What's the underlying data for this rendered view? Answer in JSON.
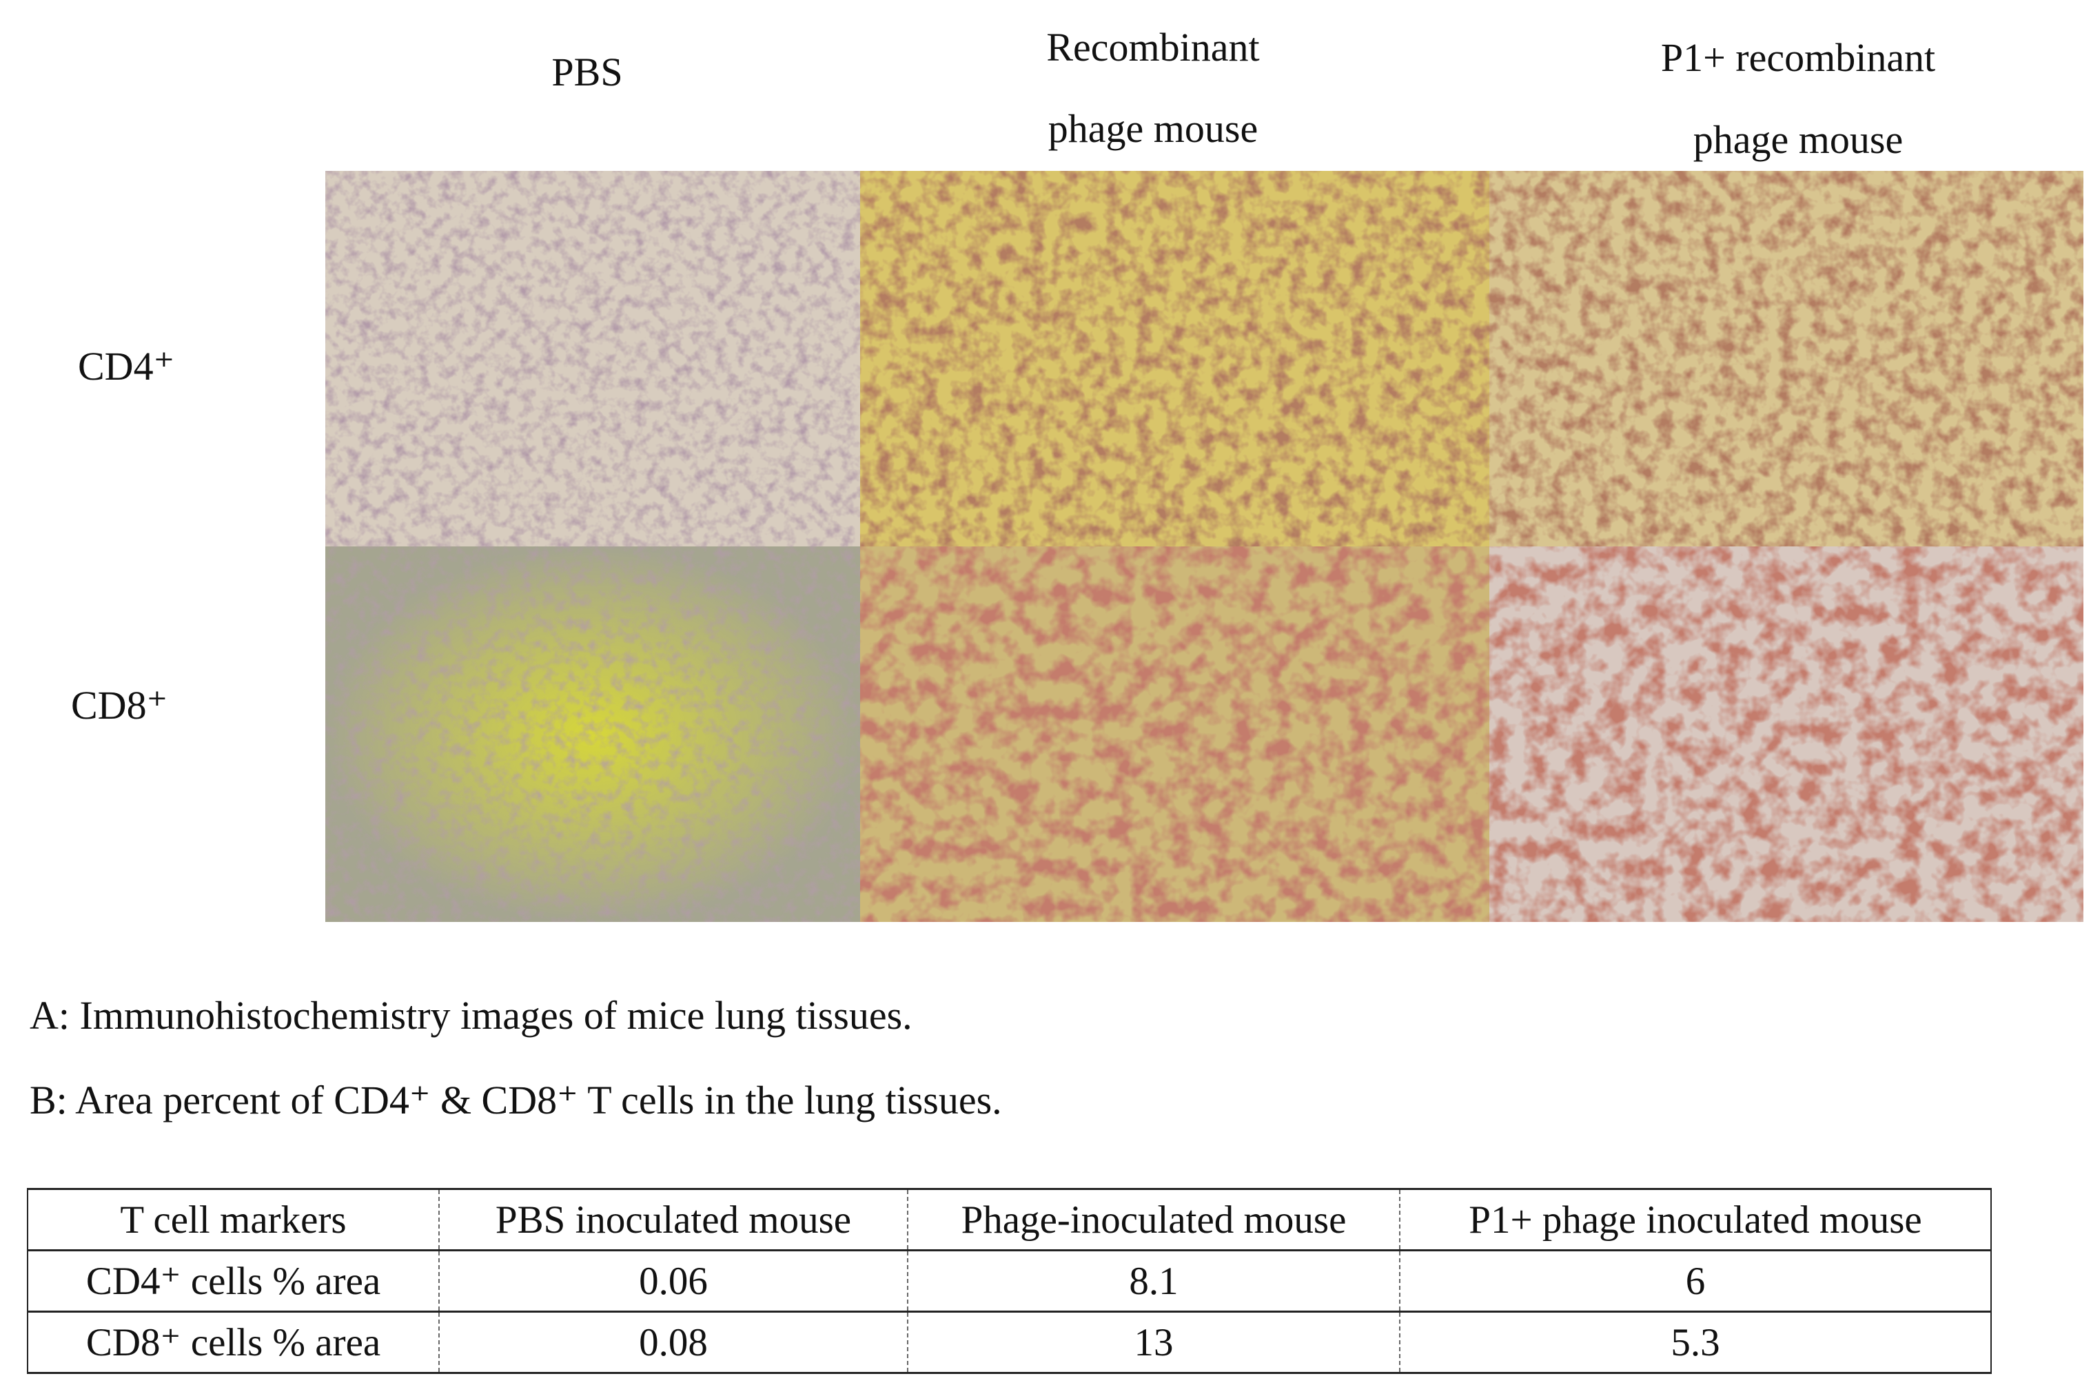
{
  "figure": {
    "column_headers": [
      [
        "PBS"
      ],
      [
        "Recombinant",
        "phage mouse"
      ],
      [
        "P1+ recombinant",
        "phage mouse"
      ]
    ],
    "row_labels": [
      "CD4⁺",
      "CD8⁺"
    ],
    "captions": [
      "A: Immunohistochemistry images of mice lung tissues.",
      "B: Area percent of CD4⁺ & CD8⁺ T cells in the lung tissues."
    ]
  },
  "table": {
    "header": [
      "T cell markers",
      "PBS inoculated mouse",
      "Phage-inoculated mouse",
      "P1+ phage inoculated mouse"
    ],
    "rows": [
      [
        "CD4⁺ cells % area",
        0.06,
        8.1,
        6
      ],
      [
        "CD8⁺ cells % area",
        0.08,
        13,
        5.3
      ]
    ]
  }
}
